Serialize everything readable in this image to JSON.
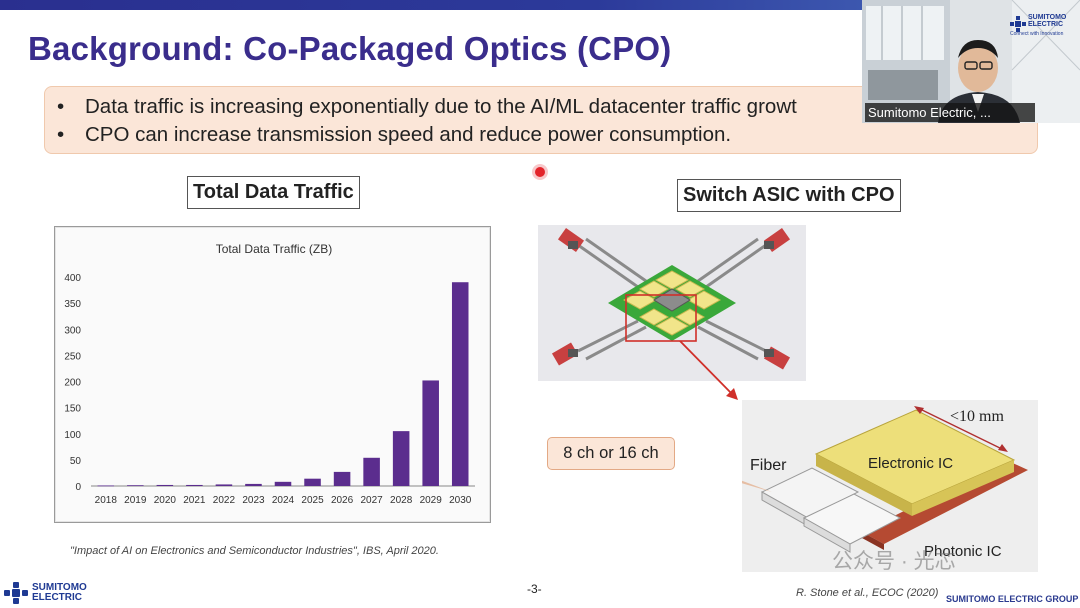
{
  "slide": {
    "title": "Background: Co-Packaged Optics (CPO)",
    "bullets": [
      "Data traffic is increasing exponentially due to the AI/ML datacenter traffic growt",
      "CPO can increase transmission speed and reduce power consumption."
    ],
    "bullet_marker": "•",
    "label_left": "Total Data Traffic",
    "label_right": "Switch ASIC with CPO",
    "citation_left": "\"Impact of AI on Electronics and Semiconductor Industries\", IBS, April 2020.",
    "citation_right": "R. Stone et al., ECOC (2020)",
    "page_number": "-3-",
    "footer_group": "SUMITOMO ELECTRIC GROUP",
    "logo_line1": "SUMITOMO",
    "logo_line2": "ELECTRIC"
  },
  "diagram": {
    "callout": "8 ch or 16 ch",
    "fiber_label": "Fiber",
    "electronic_ic_label": "Electronic IC",
    "photonic_ic_label": "Photonic IC",
    "dimension_label": "<10 mm"
  },
  "video": {
    "participant_name": "Sumitomo Electric, ...",
    "logo_line1": "SUMITOMO",
    "logo_line2": "ELECTRIC",
    "logo_tagline": "Connect with Innovation"
  },
  "watermark": "公众号 · 光芯",
  "colors": {
    "title": "#3a2d8c",
    "bar": "#5b2d8e",
    "bullet_box": "#fbe6d8",
    "laser": "#e3242b"
  },
  "chart_data": {
    "type": "bar",
    "title": "Total Data Traffic (ZB)",
    "categories": [
      "2018",
      "2019",
      "2020",
      "2021",
      "2022",
      "2023",
      "2024",
      "2025",
      "2026",
      "2027",
      "2028",
      "2029",
      "2030"
    ],
    "values": [
      1,
      1.5,
      2,
      2,
      3,
      4,
      8,
      14,
      27,
      54,
      105,
      202,
      390
    ],
    "ylim": [
      0,
      400
    ],
    "yticks": [
      0,
      50,
      100,
      150,
      200,
      250,
      300,
      350,
      400
    ],
    "grid": false
  }
}
